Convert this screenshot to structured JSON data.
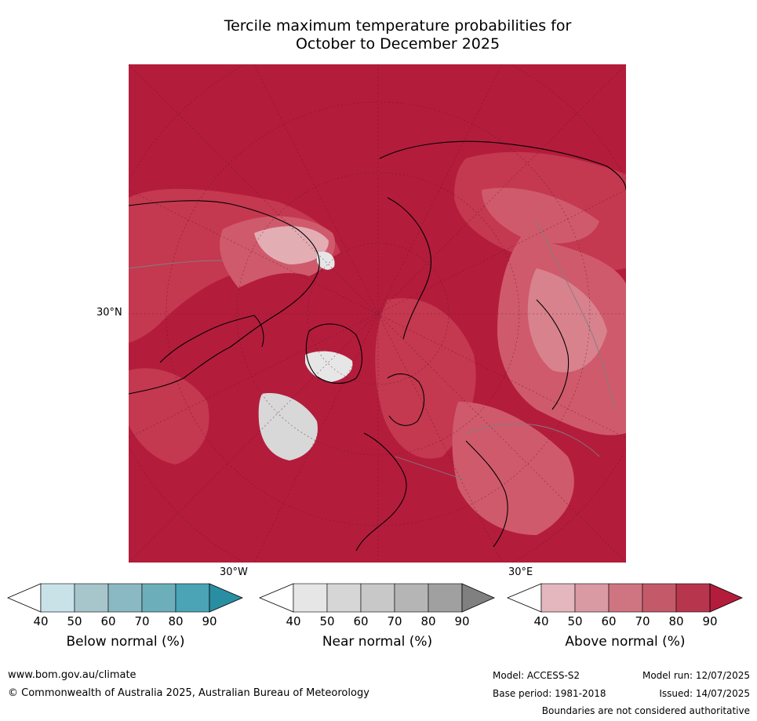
{
  "title_line1": "Tercile maximum temperature probabilities for",
  "title_line2": "October to December 2025",
  "map": {
    "lat_label": "30°N",
    "lon_labels": [
      "30°W",
      "30°E"
    ],
    "colors": {
      "ocean_high": "#b41c3c",
      "above_80": "#c43850",
      "above_70": "#cf5a6c",
      "above_60": "#d8828e",
      "above_50": "#e3adb4",
      "near_normal": "#d8d8d8",
      "land_outline": "#000000",
      "borders": "#7f7f7f"
    }
  },
  "colorbars": [
    {
      "name": "Below normal (%)",
      "ticks": [
        "40",
        "50",
        "60",
        "70",
        "80",
        "90"
      ],
      "colors": [
        "#ffffff",
        "#c9e2e8",
        "#a6c6cc",
        "#8bb9c3",
        "#6daebb",
        "#4aa4b5",
        "#2a8ea3"
      ]
    },
    {
      "name": "Near normal (%)",
      "ticks": [
        "40",
        "50",
        "60",
        "70",
        "80",
        "90"
      ],
      "colors": [
        "#ffffff",
        "#e6e6e6",
        "#d6d6d6",
        "#c8c8c8",
        "#b5b5b5",
        "#a0a0a0",
        "#808080"
      ]
    },
    {
      "name": "Above normal (%)",
      "ticks": [
        "40",
        "50",
        "60",
        "70",
        "80",
        "90"
      ],
      "colors": [
        "#ffffff",
        "#e3b7bd",
        "#d99aa3",
        "#cf7582",
        "#c45a69",
        "#b8364d",
        "#b41c3c"
      ]
    }
  ],
  "footer": {
    "website": "www.bom.gov.au/climate",
    "copyright": "© Commonwealth of Australia 2025, Australian Bureau of Meteorology",
    "model": "Model: ACCESS-S2",
    "base_period": "Base period: 1981-2018",
    "model_run": "Model run: 12/07/2025",
    "issued": "Issued: 14/07/2025",
    "disclaimer": "Boundaries are not considered authoritative"
  }
}
